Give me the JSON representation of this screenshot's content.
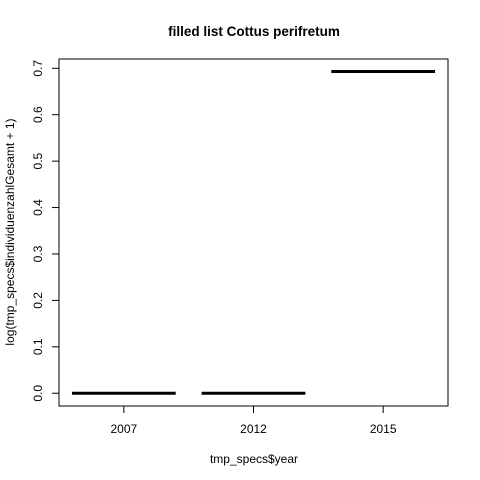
{
  "chart_data": {
    "type": "boxplot",
    "title": "filled list Cottus perifretum",
    "xlabel": "tmp_specs$year",
    "ylabel": "log(tmp_specs$individuenzahlGesamt + 1)",
    "categories": [
      "2007",
      "2012",
      "2015"
    ],
    "values": [
      0,
      0,
      0.693
    ],
    "ylim": [
      -0.0275,
      0.72
    ],
    "yticks": [
      "0.0",
      "0.1",
      "0.2",
      "0.3",
      "0.4",
      "0.5",
      "0.6",
      "0.7"
    ],
    "ytick_values": [
      0,
      0.1,
      0.2,
      0.3,
      0.4,
      0.5,
      0.6,
      0.7
    ],
    "grid": false,
    "legend": "none",
    "color": "#000000"
  }
}
